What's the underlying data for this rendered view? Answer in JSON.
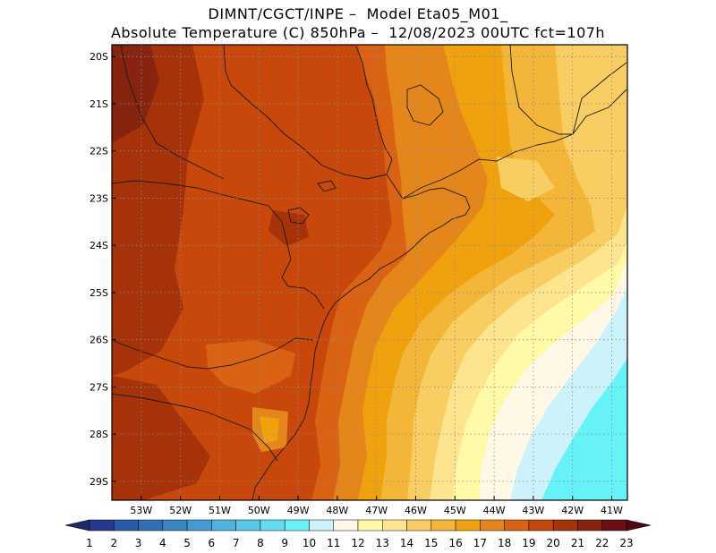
{
  "header": {
    "line1": "DIMNT/CGCT/INPE –  Model Eta05_M01_",
    "line2": "Absolute Temperature (C) 850hPa –  12/08/2023 00UTC fct=107h"
  },
  "map": {
    "lon_min": -53.75,
    "lon_max": -40.6,
    "lat_min": -29.4,
    "lat_max": -19.75,
    "lon_ticks": [
      {
        "value": -53,
        "label": "53W"
      },
      {
        "value": -52,
        "label": "52W"
      },
      {
        "value": -51,
        "label": "51W"
      },
      {
        "value": -50,
        "label": "50W"
      },
      {
        "value": -49,
        "label": "49W"
      },
      {
        "value": -48,
        "label": "48W"
      },
      {
        "value": -47,
        "label": "47W"
      },
      {
        "value": -46,
        "label": "46W"
      },
      {
        "value": -45,
        "label": "45W"
      },
      {
        "value": -44,
        "label": "44W"
      },
      {
        "value": -43,
        "label": "43W"
      },
      {
        "value": -42,
        "label": "42W"
      },
      {
        "value": -41,
        "label": "41W"
      }
    ],
    "lat_ticks": [
      {
        "value": -20,
        "label": "20S"
      },
      {
        "value": -21,
        "label": "21S"
      },
      {
        "value": -22,
        "label": "22S"
      },
      {
        "value": -23,
        "label": "23S"
      },
      {
        "value": -24,
        "label": "24S"
      },
      {
        "value": -25,
        "label": "25S"
      },
      {
        "value": -26,
        "label": "26S"
      },
      {
        "value": -27,
        "label": "27S"
      },
      {
        "value": -28,
        "label": "28S"
      },
      {
        "value": -29,
        "label": "29S"
      }
    ]
  },
  "colorbar": {
    "labels": [
      "1",
      "2",
      "3",
      "4",
      "5",
      "6",
      "7",
      "8",
      "9",
      "10",
      "11",
      "12",
      "13",
      "14",
      "15",
      "16",
      "17",
      "18",
      "19",
      "20",
      "21",
      "22",
      "23"
    ],
    "colors": [
      "#27388f",
      "#2b5aa6",
      "#3270b5",
      "#3a86c4",
      "#439bd1",
      "#4db3de",
      "#58c8e8",
      "#63dcef",
      "#66f2f7",
      "#ccf3fb",
      "#fff8e6",
      "#fffaa8",
      "#fde58f",
      "#f8cd62",
      "#f3b638",
      "#f0a20e",
      "#e5861a",
      "#d96312",
      "#c7480a",
      "#a53209",
      "#872410",
      "#6d0e16"
    ],
    "low_color": "#1d2a6e",
    "high_color": "#4d0a12"
  }
}
